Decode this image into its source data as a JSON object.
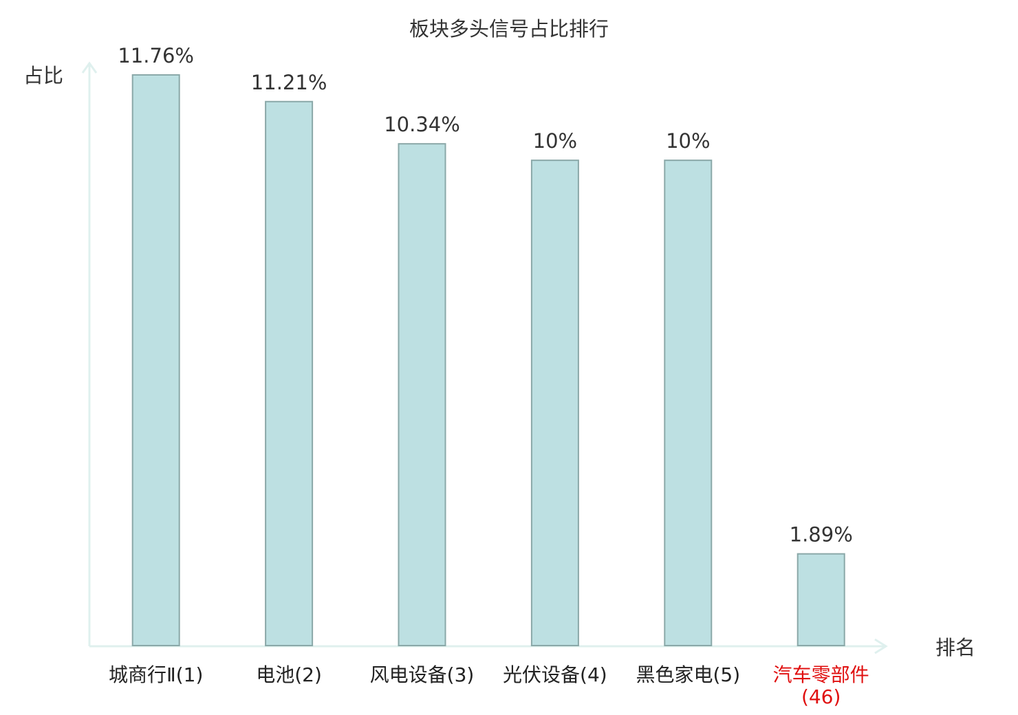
{
  "chart_data": {
    "type": "bar",
    "title": "板块多头信号占比排行",
    "y_label": "占比",
    "x_label": "排名",
    "categories": [
      "城商行Ⅱ(1)",
      "电池(2)",
      "风电设备(3)",
      "光伏设备(4)",
      "黑色家电(5)",
      "汽车零部件(46)"
    ],
    "values": [
      11.76,
      11.21,
      10.34,
      10,
      10,
      1.89
    ],
    "value_labels": [
      "11.76%",
      "11.21%",
      "10.34%",
      "10%",
      "10%",
      "1.89%"
    ],
    "color": "#bde0e2",
    "edge_color": "#8aa8a8",
    "label_colors": [
      "#222222",
      "#222222",
      "#222222",
      "#222222",
      "#222222",
      "#e01010"
    ],
    "ylim": [
      0,
      12
    ]
  }
}
